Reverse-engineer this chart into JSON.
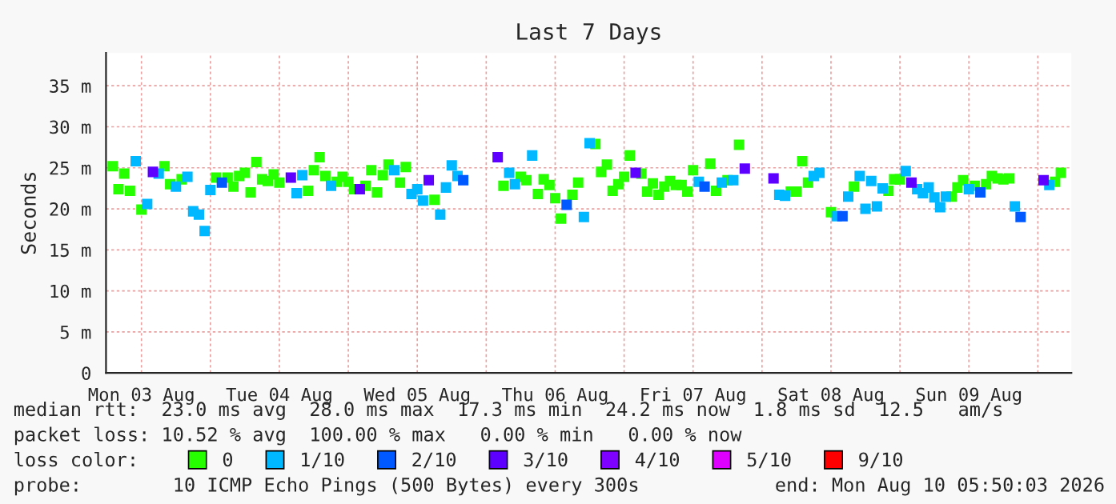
{
  "chart_data": {
    "type": "scatter",
    "title": "Last 7 Days",
    "ylabel": "Seconds",
    "legend_title": "loss color:",
    "legend": "bottom",
    "marker": "square",
    "grid": true,
    "xlim": [
      "2026-08-03T05:50",
      "2026-08-10T05:50"
    ],
    "xticks": [
      {
        "value": "2026-08-03T12:00",
        "label": "Mon 03 Aug"
      },
      {
        "value": "2026-08-04T00:00",
        "label": null
      },
      {
        "value": "2026-08-04T12:00",
        "label": "Tue 04 Aug"
      },
      {
        "value": "2026-08-05T00:00",
        "label": null
      },
      {
        "value": "2026-08-05T12:00",
        "label": "Wed 05 Aug"
      },
      {
        "value": "2026-08-06T00:00",
        "label": null
      },
      {
        "value": "2026-08-06T12:00",
        "label": "Thu 06 Aug"
      },
      {
        "value": "2026-08-07T00:00",
        "label": null
      },
      {
        "value": "2026-08-07T12:00",
        "label": "Fri 07 Aug"
      },
      {
        "value": "2026-08-08T00:00",
        "label": null
      },
      {
        "value": "2026-08-08T12:00",
        "label": "Sat 08 Aug"
      },
      {
        "value": "2026-08-09T00:00",
        "label": null
      },
      {
        "value": "2026-08-09T12:00",
        "label": "Sun 09 Aug"
      },
      {
        "value": "2026-08-10T00:00",
        "label": null
      }
    ],
    "ylim": [
      0,
      39
    ],
    "yticks": [
      0,
      {
        "value": 5,
        "label": "5 m"
      },
      {
        "value": 10,
        "label": "10 m"
      },
      {
        "value": 15,
        "label": "15 m"
      },
      {
        "value": 20,
        "label": "20 m"
      },
      {
        "value": 25,
        "label": "25 m"
      },
      {
        "value": 30,
        "label": "30 m"
      },
      {
        "value": 35,
        "label": "35 m"
      }
    ],
    "annotations": [
      "median rtt:  23.0 ms avg  28.0 ms max  17.3 ms min  24.2 ms now  1.8 ms sd  12.5   am/s",
      "packet loss: 10.52 % avg  100.00 % max   0.00 % min   0.00 % now",
      "probe:        10 ICMP Echo Pings (500 Bytes) every 300s",
      "end: Mon Aug 10 05:50:03 2026"
    ],
    "series": [
      {
        "name": "0",
        "color": "#26ff00",
        "x": [
          "2026-08-03T07:00",
          "2026-08-03T08:00",
          "2026-08-03T09:00",
          "2026-08-03T10:00",
          "2026-08-03T12:00",
          "2026-08-03T16:00",
          "2026-08-03T17:00",
          "2026-08-03T19:00",
          "2026-08-04T01:00",
          "2026-08-04T03:00",
          "2026-08-04T04:00",
          "2026-08-04T05:00",
          "2026-08-04T06:00",
          "2026-08-04T07:00",
          "2026-08-04T08:00",
          "2026-08-04T09:00",
          "2026-08-04T10:00",
          "2026-08-04T11:00",
          "2026-08-04T12:00",
          "2026-08-04T17:00",
          "2026-08-04T18:00",
          "2026-08-04T19:00",
          "2026-08-04T20:00",
          "2026-08-04T22:00",
          "2026-08-04T23:00",
          "2026-08-05T00:00",
          "2026-08-05T01:00",
          "2026-08-05T03:00",
          "2026-08-05T04:00",
          "2026-08-05T05:00",
          "2026-08-05T06:00",
          "2026-08-05T07:00",
          "2026-08-05T09:00",
          "2026-08-05T10:00",
          "2026-08-05T15:00",
          "2026-08-06T03:00",
          "2026-08-06T06:00",
          "2026-08-06T07:00",
          "2026-08-06T09:00",
          "2026-08-06T10:00",
          "2026-08-06T11:00",
          "2026-08-06T12:00",
          "2026-08-06T13:00",
          "2026-08-06T15:00",
          "2026-08-06T16:00",
          "2026-08-06T19:00",
          "2026-08-06T20:00",
          "2026-08-06T21:00",
          "2026-08-06T22:00",
          "2026-08-06T23:00",
          "2026-08-07T00:00",
          "2026-08-07T01:00",
          "2026-08-07T03:00",
          "2026-08-07T04:00",
          "2026-08-07T05:00",
          "2026-08-07T06:00",
          "2026-08-07T07:00",
          "2026-08-07T08:00",
          "2026-08-07T09:00",
          "2026-08-07T10:00",
          "2026-08-07T11:00",
          "2026-08-07T12:00",
          "2026-08-07T15:00",
          "2026-08-07T16:00",
          "2026-08-07T18:00",
          "2026-08-07T20:00",
          "2026-08-08T05:00",
          "2026-08-08T06:00",
          "2026-08-08T07:00",
          "2026-08-08T08:00",
          "2026-08-08T12:00",
          "2026-08-08T16:00",
          "2026-08-08T22:00",
          "2026-08-08T23:00",
          "2026-08-09T00:00",
          "2026-08-09T09:00",
          "2026-08-09T10:00",
          "2026-08-09T11:00",
          "2026-08-09T13:00",
          "2026-08-09T15:00",
          "2026-08-09T16:00",
          "2026-08-09T17:00",
          "2026-08-09T18:00",
          "2026-08-09T19:00",
          "2026-08-10T03:00",
          "2026-08-10T04:00"
        ],
        "values": [
          25.2,
          22.4,
          24.3,
          22.2,
          19.9,
          25.2,
          23.0,
          23.6,
          23.8,
          23.8,
          22.7,
          24.0,
          24.4,
          22.0,
          25.7,
          23.6,
          23.4,
          24.2,
          23.2,
          22.2,
          24.7,
          26.3,
          24.0,
          23.3,
          23.9,
          23.3,
          22.4,
          22.8,
          24.7,
          22.0,
          24.1,
          25.4,
          23.2,
          25.1,
          21.1,
          22.8,
          23.9,
          23.5,
          21.8,
          23.6,
          22.9,
          21.3,
          18.8,
          21.7,
          23.2,
          27.9,
          24.5,
          25.4,
          22.2,
          23.0,
          23.9,
          26.5,
          24.3,
          22.1,
          23.1,
          21.7,
          22.7,
          23.4,
          22.9,
          22.9,
          22.1,
          24.7,
          25.5,
          22.2,
          23.5,
          27.8,
          22.1,
          22.1,
          25.8,
          23.2,
          19.6,
          22.7,
          22.2,
          23.6,
          23.6,
          21.5,
          22.6,
          23.5,
          22.8,
          23.0,
          24.0,
          23.7,
          23.6,
          23.7,
          23.3,
          24.4
        ]
      },
      {
        "name": "1/10",
        "color": "#00b8ff",
        "x": [
          "2026-08-03T11:00",
          "2026-08-03T13:00",
          "2026-08-03T15:00",
          "2026-08-03T18:00",
          "2026-08-03T20:00",
          "2026-08-03T21:00",
          "2026-08-03T22:00",
          "2026-08-03T23:00",
          "2026-08-04T00:00",
          "2026-08-04T15:00",
          "2026-08-04T16:00",
          "2026-08-04T21:00",
          "2026-08-05T08:00",
          "2026-08-05T11:00",
          "2026-08-05T12:00",
          "2026-08-05T13:00",
          "2026-08-05T16:00",
          "2026-08-05T17:00",
          "2026-08-05T18:00",
          "2026-08-05T19:00",
          "2026-08-06T04:00",
          "2026-08-06T05:00",
          "2026-08-06T08:00",
          "2026-08-06T17:00",
          "2026-08-06T18:00",
          "2026-08-07T13:00",
          "2026-08-07T17:00",
          "2026-08-07T19:00",
          "2026-08-08T03:00",
          "2026-08-08T04:00",
          "2026-08-08T09:00",
          "2026-08-08T10:00",
          "2026-08-08T13:00",
          "2026-08-08T15:00",
          "2026-08-08T17:00",
          "2026-08-08T18:00",
          "2026-08-08T19:00",
          "2026-08-08T20:00",
          "2026-08-08T21:00",
          "2026-08-09T01:00",
          "2026-08-09T03:00",
          "2026-08-09T04:00",
          "2026-08-09T05:00",
          "2026-08-09T06:00",
          "2026-08-09T07:00",
          "2026-08-09T08:00",
          "2026-08-09T12:00",
          "2026-08-09T20:00",
          "2026-08-10T02:00"
        ],
        "values": [
          25.8,
          20.6,
          24.3,
          22.7,
          23.9,
          19.7,
          19.3,
          17.3,
          22.3,
          21.9,
          24.1,
          22.8,
          24.7,
          21.8,
          22.4,
          21.0,
          19.3,
          22.6,
          25.3,
          24.0,
          24.4,
          23.0,
          26.5,
          19.0,
          28.0,
          23.3,
          23.2,
          23.5,
          21.7,
          21.6,
          24.0,
          24.4,
          19.1,
          21.5,
          24.0,
          20.0,
          23.4,
          20.3,
          22.5,
          24.6,
          22.4,
          21.9,
          22.6,
          21.4,
          20.2,
          21.5,
          22.4,
          20.3,
          22.9
        ]
      },
      {
        "name": "2/10",
        "color": "#0059ff",
        "x": [
          "2026-08-04T02:00",
          "2026-08-05T20:00",
          "2026-08-06T14:00",
          "2026-08-07T14:00",
          "2026-08-08T14:00",
          "2026-08-09T14:00",
          "2026-08-09T21:00"
        ],
        "values": [
          23.2,
          23.5,
          20.5,
          22.7,
          19.1,
          22.0,
          19.0
        ]
      },
      {
        "name": "3/10",
        "color": "#5e00ff",
        "x": [
          "2026-08-03T14:00",
          "2026-08-04T14:00",
          "2026-08-05T02:00",
          "2026-08-05T14:00",
          "2026-08-06T02:00",
          "2026-08-07T02:00",
          "2026-08-07T21:00",
          "2026-08-08T02:00",
          "2026-08-09T02:00",
          "2026-08-10T01:00"
        ],
        "values": [
          24.5,
          23.8,
          22.4,
          23.5,
          26.3,
          24.4,
          24.9,
          23.7,
          23.2,
          23.5
        ]
      },
      {
        "name": "4/10",
        "color": "#7e00ff"
      },
      {
        "name": "5/10",
        "color": "#dd00ff"
      },
      {
        "name": "9/10",
        "color": "#ff0000"
      }
    ]
  }
}
